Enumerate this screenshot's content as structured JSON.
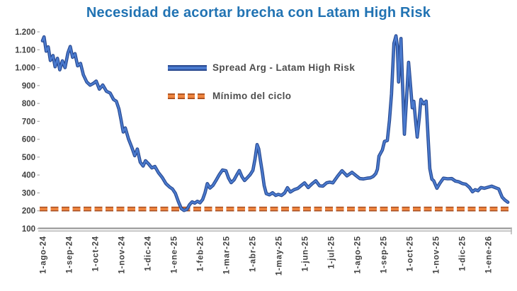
{
  "title": "Necesidad de acortar brecha con Latam High Risk",
  "legend": {
    "series_label": "Spread Arg - Latam High Risk",
    "min_label": "Mínimo del ciclo"
  },
  "colors": {
    "background_color": "#ffffff",
    "title_color": "#2173b3",
    "series_color": "#4a7ace",
    "series_edge_color": "#27488f",
    "min_color": "#ef8640",
    "min_edge_color": "#a64d1f",
    "axis_text_color": "#404040",
    "axis_line_color": "#8f8f8f",
    "legend_text_color": "#4d4d4d"
  },
  "chart_data": {
    "type": "line",
    "title": "Necesidad de acortar brecha con Latam High Risk",
    "grid": false,
    "legend_position": "inside-top-center",
    "x_axis": {
      "unit": "months since 1-ago-24",
      "tick_labels": [
        "1-ago-24",
        "1-sep-24",
        "1-oct-24",
        "1-nov-24",
        "1-dic-24",
        "1-ene-25",
        "1-feb-25",
        "1-mar-25",
        "1-abr-25",
        "1-may-25",
        "1-jun-25",
        "1-jul-25",
        "1-ago-25",
        "1-sep-25",
        "1-oct-25",
        "1-nov-25",
        "1-dic-25",
        "1-ene-26"
      ]
    },
    "y_axis": {
      "min": 100,
      "max": 1200,
      "ticks": [
        {
          "label": "1.200",
          "value": 1200
        },
        {
          "label": "1.100",
          "value": 1100
        },
        {
          "label": "1.000",
          "value": 1000
        },
        {
          "label": "900",
          "value": 900
        },
        {
          "label": "800",
          "value": 800
        },
        {
          "label": "700",
          "value": 700
        },
        {
          "label": "600",
          "value": 600
        },
        {
          "label": "500",
          "value": 500
        },
        {
          "label": "400",
          "value": 400
        },
        {
          "label": "300",
          "value": 300
        },
        {
          "label": "200",
          "value": 200
        },
        {
          "label": "100",
          "value": 100
        }
      ]
    },
    "series": [
      {
        "name": "Spread Arg - Latam High Risk",
        "type": "line",
        "style": "solid",
        "color": "#4a7ace",
        "points": [
          [
            0.0,
            1150
          ],
          [
            0.06,
            1172
          ],
          [
            0.14,
            1092
          ],
          [
            0.22,
            1116
          ],
          [
            0.3,
            1040
          ],
          [
            0.4,
            1068
          ],
          [
            0.48,
            1005
          ],
          [
            0.57,
            1052
          ],
          [
            0.66,
            988
          ],
          [
            0.76,
            1038
          ],
          [
            0.86,
            1000
          ],
          [
            0.97,
            1082
          ],
          [
            1.06,
            1118
          ],
          [
            1.15,
            1058
          ],
          [
            1.24,
            1078
          ],
          [
            1.34,
            1010
          ],
          [
            1.45,
            1024
          ],
          [
            1.56,
            960
          ],
          [
            1.69,
            920
          ],
          [
            1.82,
            902
          ],
          [
            1.94,
            912
          ],
          [
            2.05,
            925
          ],
          [
            2.17,
            880
          ],
          [
            2.3,
            903
          ],
          [
            2.44,
            868
          ],
          [
            2.58,
            858
          ],
          [
            2.71,
            822
          ],
          [
            2.82,
            812
          ],
          [
            2.92,
            768
          ],
          [
            3.0,
            706
          ],
          [
            3.08,
            640
          ],
          [
            3.16,
            663
          ],
          [
            3.28,
            602
          ],
          [
            3.4,
            558
          ],
          [
            3.52,
            508
          ],
          [
            3.62,
            545
          ],
          [
            3.73,
            472
          ],
          [
            3.84,
            450
          ],
          [
            3.93,
            480
          ],
          [
            4.05,
            462
          ],
          [
            4.17,
            440
          ],
          [
            4.29,
            448
          ],
          [
            4.43,
            412
          ],
          [
            4.57,
            386
          ],
          [
            4.71,
            352
          ],
          [
            4.85,
            333
          ],
          [
            4.96,
            322
          ],
          [
            5.07,
            298
          ],
          [
            5.19,
            250
          ],
          [
            5.3,
            212
          ],
          [
            5.4,
            202
          ],
          [
            5.51,
            208
          ],
          [
            5.61,
            234
          ],
          [
            5.71,
            250
          ],
          [
            5.81,
            243
          ],
          [
            5.91,
            253
          ],
          [
            6.01,
            245
          ],
          [
            6.11,
            263
          ],
          [
            6.2,
            300
          ],
          [
            6.29,
            352
          ],
          [
            6.39,
            327
          ],
          [
            6.51,
            343
          ],
          [
            6.63,
            372
          ],
          [
            6.75,
            403
          ],
          [
            6.87,
            428
          ],
          [
            7.0,
            424
          ],
          [
            7.1,
            383
          ],
          [
            7.2,
            357
          ],
          [
            7.31,
            373
          ],
          [
            7.41,
            400
          ],
          [
            7.51,
            425
          ],
          [
            7.61,
            391
          ],
          [
            7.71,
            369
          ],
          [
            7.83,
            387
          ],
          [
            7.93,
            403
          ],
          [
            8.03,
            426
          ],
          [
            8.11,
            490
          ],
          [
            8.19,
            570
          ],
          [
            8.25,
            546
          ],
          [
            8.32,
            480
          ],
          [
            8.39,
            415
          ],
          [
            8.46,
            341
          ],
          [
            8.54,
            296
          ],
          [
            8.66,
            289
          ],
          [
            8.78,
            301
          ],
          [
            8.9,
            286
          ],
          [
            9.0,
            292
          ],
          [
            9.12,
            286
          ],
          [
            9.24,
            300
          ],
          [
            9.35,
            329
          ],
          [
            9.46,
            305
          ],
          [
            9.6,
            318
          ],
          [
            9.74,
            325
          ],
          [
            9.88,
            342
          ],
          [
            10.0,
            356
          ],
          [
            10.14,
            330
          ],
          [
            10.28,
            350
          ],
          [
            10.43,
            368
          ],
          [
            10.57,
            340
          ],
          [
            10.7,
            338
          ],
          [
            10.84,
            356
          ],
          [
            10.96,
            360
          ],
          [
            11.08,
            356
          ],
          [
            11.27,
            395
          ],
          [
            11.43,
            424
          ],
          [
            11.62,
            395
          ],
          [
            11.81,
            415
          ],
          [
            11.97,
            396
          ],
          [
            12.11,
            380
          ],
          [
            12.24,
            378
          ],
          [
            12.38,
            382
          ],
          [
            12.51,
            384
          ],
          [
            12.62,
            392
          ],
          [
            12.72,
            408
          ],
          [
            12.78,
            432
          ],
          [
            12.84,
            505
          ],
          [
            12.97,
            540
          ],
          [
            13.05,
            588
          ],
          [
            13.16,
            593
          ],
          [
            13.24,
            705
          ],
          [
            13.32,
            852
          ],
          [
            13.41,
            1135
          ],
          [
            13.49,
            1178
          ],
          [
            13.54,
            1120
          ],
          [
            13.59,
            920
          ],
          [
            13.68,
            1163
          ],
          [
            13.74,
            905
          ],
          [
            13.81,
            628
          ],
          [
            13.89,
            818
          ],
          [
            13.97,
            1030
          ],
          [
            14.05,
            888
          ],
          [
            14.11,
            776
          ],
          [
            14.17,
            812
          ],
          [
            14.24,
            700
          ],
          [
            14.3,
            612
          ],
          [
            14.38,
            722
          ],
          [
            14.44,
            823
          ],
          [
            14.54,
            798
          ],
          [
            14.64,
            813
          ],
          [
            14.72,
            598
          ],
          [
            14.78,
            436
          ],
          [
            14.86,
            377
          ],
          [
            14.93,
            368
          ],
          [
            15.05,
            326
          ],
          [
            15.16,
            353
          ],
          [
            15.3,
            382
          ],
          [
            15.46,
            379
          ],
          [
            15.62,
            380
          ],
          [
            15.76,
            366
          ],
          [
            15.89,
            362
          ],
          [
            16.03,
            352
          ],
          [
            16.16,
            348
          ],
          [
            16.3,
            330
          ],
          [
            16.41,
            306
          ],
          [
            16.51,
            318
          ],
          [
            16.62,
            312
          ],
          [
            16.73,
            330
          ],
          [
            16.86,
            326
          ],
          [
            17.0,
            332
          ],
          [
            17.14,
            338
          ],
          [
            17.27,
            330
          ],
          [
            17.41,
            322
          ],
          [
            17.54,
            276
          ],
          [
            17.65,
            260
          ],
          [
            17.76,
            248
          ]
        ]
      },
      {
        "name": "Mínimo del ciclo",
        "type": "horizontal-line",
        "style": "dashed",
        "color": "#ef8640",
        "value": 210
      }
    ]
  }
}
